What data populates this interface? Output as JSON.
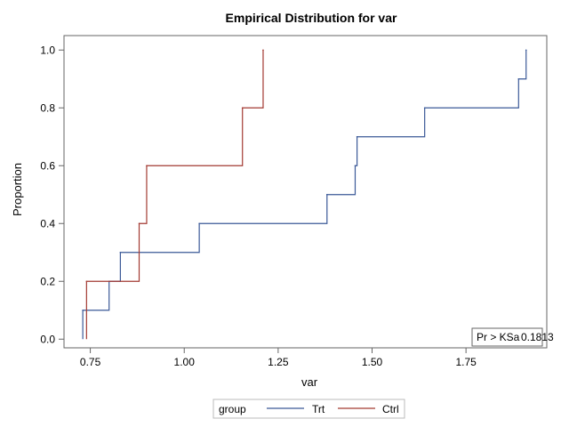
{
  "chart_data": {
    "type": "line",
    "title": "Empirical Distribution for var",
    "xlabel": "var",
    "ylabel": "Proportion",
    "xlim": [
      0.68,
      1.965
    ],
    "ylim": [
      -0.03,
      1.05
    ],
    "x_ticks": [
      0.75,
      1.0,
      1.25,
      1.5,
      1.75
    ],
    "x_tick_labels": [
      "0.75",
      "1.00",
      "1.25",
      "1.50",
      "1.75"
    ],
    "y_ticks": [
      0.0,
      0.2,
      0.4,
      0.6,
      0.8,
      1.0
    ],
    "y_tick_labels": [
      "0.0",
      "0.2",
      "0.4",
      "0.6",
      "0.8",
      "1.0"
    ],
    "grid": false,
    "step": true,
    "series": [
      {
        "name": "Trt",
        "color": "#3b5998",
        "x": [
          0.73,
          0.8,
          0.83,
          1.04,
          1.38,
          1.455,
          1.46,
          1.64,
          1.89,
          1.91
        ],
        "y": [
          0.1,
          0.2,
          0.3,
          0.4,
          0.5,
          0.6,
          0.7,
          0.8,
          0.9,
          1.0
        ]
      },
      {
        "name": "Ctrl",
        "color": "#a33a32",
        "x": [
          0.74,
          0.88,
          0.9,
          1.155,
          1.21
        ],
        "y": [
          0.2,
          0.4,
          0.6,
          0.8,
          1.0
        ]
      }
    ],
    "inset": {
      "label": "Pr > KSa",
      "value": "0.1813",
      "placement": "bottom-right"
    },
    "legend": {
      "title": "group",
      "placement": "bottom"
    }
  }
}
